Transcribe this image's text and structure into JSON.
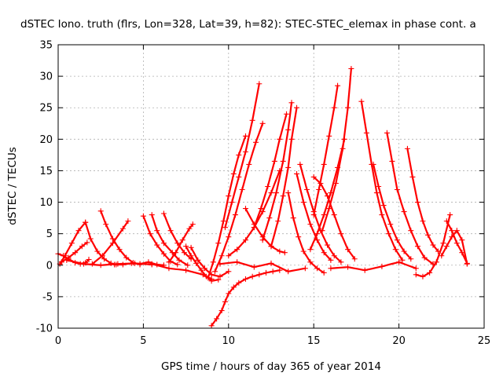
{
  "chart_data": {
    "type": "scatter",
    "title": "dSTEC Iono. truth (flrs, Lon=328, Lat=39, h=82): STEC-STEC_elemax in phase cont. a",
    "xlabel": "GPS time / hours of day 365 of year 2014",
    "ylabel": "dSTEC  / TECUs",
    "xlim": [
      0,
      25
    ],
    "ylim": [
      -10,
      35
    ],
    "xticks": [
      0,
      5,
      10,
      15,
      20,
      25
    ],
    "yticks": [
      -10,
      -5,
      0,
      5,
      10,
      15,
      20,
      25,
      30,
      35
    ],
    "grid": true,
    "legend": "none",
    "marker": "+",
    "colors": {
      "series": "#ff0000",
      "axes": "#000000",
      "grid": "#b0b0b0"
    },
    "series": [
      {
        "x": [
          0.0,
          0.3,
          0.6,
          1.0,
          1.3,
          1.6,
          1.8
        ],
        "y": [
          1.8,
          1.5,
          1.0,
          0.4,
          0.2,
          0.4,
          0.9
        ]
      },
      {
        "x": [
          0.1,
          0.4,
          0.8,
          1.2,
          1.6
        ],
        "y": [
          0.2,
          1.5,
          3.5,
          5.5,
          6.8
        ]
      },
      {
        "x": [
          1.6,
          1.9,
          2.3,
          2.7,
          3.1,
          3.4
        ],
        "y": [
          6.8,
          4.2,
          2.2,
          1.0,
          0.3,
          0.1
        ]
      },
      {
        "x": [
          0.2,
          0.6,
          1.0,
          1.4,
          1.7
        ],
        "y": [
          0.5,
          1.2,
          2.0,
          3.0,
          3.6
        ]
      },
      {
        "x": [
          2.5,
          2.8,
          3.2,
          3.6,
          4.0,
          4.4,
          4.8
        ],
        "y": [
          8.6,
          6.5,
          4.2,
          2.5,
          1.2,
          0.4,
          0.1
        ]
      },
      {
        "x": [
          2.0,
          2.6,
          3.2,
          3.8,
          4.1
        ],
        "y": [
          0.2,
          1.5,
          3.5,
          5.8,
          7.0
        ]
      },
      {
        "x": [
          3.3,
          3.8,
          4.3,
          4.8,
          5.3,
          5.8,
          6.2
        ],
        "y": [
          0.1,
          0.1,
          0.3,
          0.2,
          0.5,
          0.1,
          0.0
        ]
      },
      {
        "x": [
          5.0,
          5.4,
          5.8,
          6.2,
          6.6,
          7.0
        ],
        "y": [
          7.8,
          5.0,
          3.2,
          1.8,
          0.6,
          0.1
        ]
      },
      {
        "x": [
          5.5,
          5.8,
          6.2,
          6.7,
          7.1,
          7.6
        ],
        "y": [
          8.0,
          5.5,
          3.5,
          2.0,
          0.8,
          0.0
        ]
      },
      {
        "x": [
          6.2,
          6.6,
          7.0,
          7.4,
          7.8
        ],
        "y": [
          8.2,
          5.5,
          3.5,
          2.0,
          1.0
        ]
      },
      {
        "x": [
          6.5,
          6.9,
          7.3,
          7.7,
          7.9
        ],
        "y": [
          0.5,
          2.0,
          4.0,
          5.8,
          6.5
        ]
      },
      {
        "x": [
          7.5,
          7.8,
          8.1,
          8.4,
          8.7,
          9.0,
          9.4
        ],
        "y": [
          3.0,
          1.5,
          0.3,
          -0.8,
          -1.8,
          -2.5,
          -2.3
        ]
      },
      {
        "x": [
          7.8,
          8.2,
          8.6,
          9.0,
          9.5,
          10.0
        ],
        "y": [
          2.8,
          0.8,
          -0.5,
          -1.5,
          -1.8,
          -1.0
        ]
      },
      {
        "x": [
          9.0,
          9.3,
          9.6,
          9.8,
          10.0,
          10.3,
          10.6,
          11.0,
          11.4,
          11.8,
          12.2,
          12.6,
          13.0
        ],
        "y": [
          -9.6,
          -8.5,
          -7.2,
          -5.8,
          -4.5,
          -3.5,
          -2.8,
          -2.2,
          -1.8,
          -1.5,
          -1.2,
          -1.0,
          -0.8
        ]
      },
      {
        "x": [
          8.8,
          9.1,
          9.4,
          9.7,
          10.0,
          10.3,
          10.6,
          11.0
        ],
        "y": [
          -2.0,
          0.5,
          3.5,
          7.0,
          11.0,
          14.5,
          17.5,
          20.5
        ]
      },
      {
        "x": [
          9.2,
          9.6,
          10.0,
          10.4,
          10.8,
          11.2,
          11.6,
          12.0
        ],
        "y": [
          -1.0,
          1.5,
          4.5,
          8.0,
          12.0,
          16.0,
          19.5,
          22.5
        ]
      },
      {
        "x": [
          9.8,
          10.2,
          10.6,
          11.0,
          11.4,
          11.8
        ],
        "y": [
          6.0,
          10.0,
          14.0,
          18.0,
          23.0,
          28.8
        ]
      },
      {
        "x": [
          10.0,
          10.5,
          11.0,
          11.5,
          12.0,
          12.5,
          13.0
        ],
        "y": [
          1.5,
          2.5,
          4.0,
          6.0,
          8.5,
          11.5,
          15.0
        ]
      },
      {
        "x": [
          11.0,
          11.5,
          12.0,
          12.5,
          13.0,
          13.3
        ],
        "y": [
          9.0,
          6.5,
          4.5,
          3.0,
          2.2,
          2.0
        ]
      },
      {
        "x": [
          11.5,
          11.9,
          12.3,
          12.7,
          13.0,
          13.4
        ],
        "y": [
          6.0,
          9.0,
          12.5,
          16.5,
          20.0,
          24.0
        ]
      },
      {
        "x": [
          12.0,
          12.4,
          12.8,
          13.2,
          13.5,
          13.7
        ],
        "y": [
          4.0,
          7.5,
          11.5,
          16.5,
          21.5,
          25.8
        ]
      },
      {
        "x": [
          12.5,
          12.9,
          13.2,
          13.5,
          13.7,
          14.0
        ],
        "y": [
          3.0,
          7.0,
          11.0,
          15.5,
          20.0,
          25.0
        ]
      },
      {
        "x": [
          13.5,
          13.8,
          14.1,
          14.4,
          14.8,
          15.2,
          15.6
        ],
        "y": [
          11.5,
          7.5,
          4.5,
          2.2,
          0.5,
          -0.5,
          -1.2
        ]
      },
      {
        "x": [
          14.0,
          14.4,
          14.8,
          15.2,
          15.6,
          16.0
        ],
        "y": [
          14.5,
          10.0,
          6.5,
          4.0,
          2.0,
          0.8
        ]
      },
      {
        "x": [
          14.2,
          14.6,
          15.0,
          15.4,
          15.8,
          16.2,
          16.6
        ],
        "y": [
          16.0,
          12.0,
          8.5,
          5.5,
          3.2,
          1.5,
          0.5
        ]
      },
      {
        "x": [
          15.0,
          15.4,
          15.8,
          16.2,
          16.6,
          17.0,
          17.4
        ],
        "y": [
          14.0,
          13.0,
          11.0,
          8.0,
          5.0,
          2.5,
          1.0
        ]
      },
      {
        "x": [
          15.0,
          15.3,
          15.6,
          15.9,
          16.2,
          16.4
        ],
        "y": [
          8.0,
          12.0,
          16.0,
          20.5,
          25.0,
          28.5
        ]
      },
      {
        "x": [
          15.5,
          15.9,
          16.3,
          16.7,
          17.0,
          17.2
        ],
        "y": [
          5.5,
          9.0,
          13.0,
          18.5,
          25.0,
          31.2
        ]
      },
      {
        "x": [
          14.8,
          15.2,
          15.6,
          16.0,
          16.4,
          16.8
        ],
        "y": [
          2.5,
          5.0,
          8.0,
          11.5,
          15.5,
          20.0
        ]
      },
      {
        "x": [
          17.8,
          18.1,
          18.4,
          18.7,
          19.0,
          19.4,
          19.8,
          20.2
        ],
        "y": [
          26.0,
          21.0,
          16.0,
          11.5,
          8.0,
          5.0,
          2.5,
          0.8
        ]
      },
      {
        "x": [
          18.5,
          18.8,
          19.1,
          19.5,
          19.9,
          20.3,
          20.7
        ],
        "y": [
          16.0,
          12.5,
          9.5,
          6.5,
          4.0,
          2.2,
          1.0
        ]
      },
      {
        "x": [
          19.3,
          19.6,
          19.9,
          20.3,
          20.7,
          21.1,
          21.5,
          22.0
        ],
        "y": [
          21.0,
          16.5,
          12.0,
          8.5,
          5.5,
          3.0,
          1.2,
          0.2
        ]
      },
      {
        "x": [
          20.5,
          20.8,
          21.1,
          21.4,
          21.7,
          22.0,
          22.3
        ],
        "y": [
          18.5,
          14.0,
          10.0,
          7.0,
          4.8,
          3.2,
          2.2
        ]
      },
      {
        "x": [
          21.0,
          21.4,
          21.8,
          22.2,
          22.6,
          23.0
        ],
        "y": [
          -1.5,
          -1.8,
          -1.2,
          0.5,
          3.5,
          8.0
        ]
      },
      {
        "x": [
          22.5,
          22.8,
          23.1,
          23.4,
          23.7,
          24.0
        ],
        "y": [
          1.5,
          3.0,
          4.5,
          5.5,
          4.0,
          0.2
        ]
      },
      {
        "x": [
          22.8,
          23.1,
          23.4,
          23.7,
          24.0
        ],
        "y": [
          7.0,
          5.5,
          3.5,
          2.0,
          0.3
        ]
      },
      {
        "x": [
          16.0,
          17.0,
          18.0,
          19.0,
          20.0,
          21.0
        ],
        "y": [
          -0.5,
          -0.3,
          -0.8,
          -0.2,
          0.5,
          -0.5
        ]
      },
      {
        "x": [
          9.5,
          10.5,
          11.5,
          12.5,
          13.5,
          14.5
        ],
        "y": [
          0.2,
          0.5,
          -0.3,
          0.3,
          -1.0,
          -0.5
        ]
      },
      {
        "x": [
          0.5,
          1.5,
          2.5,
          3.5,
          4.5,
          5.5
        ],
        "y": [
          0.8,
          0.2,
          0.0,
          0.2,
          0.3,
          0.1
        ]
      },
      {
        "x": [
          5.5,
          6.5,
          7.5,
          8.5,
          9.0
        ],
        "y": [
          0.2,
          -0.5,
          -0.8,
          -1.5,
          -2.2
        ]
      }
    ]
  }
}
